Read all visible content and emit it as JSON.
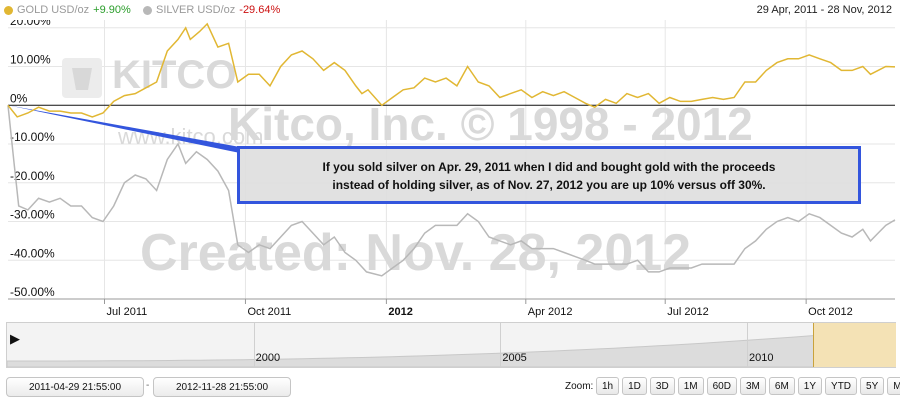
{
  "legend": {
    "gold": {
      "label": "GOLD USD/oz",
      "change": "+9.90%",
      "color": "#e1b733",
      "change_color": "#2a9d2a"
    },
    "silver": {
      "label": "SILVER USD/oz",
      "change": "-29.64%",
      "color": "#b8b8b8",
      "change_color": "#cc1111"
    },
    "date_range": "29 Apr, 2011 - 28 Nov, 2012"
  },
  "watermark": {
    "logo": "KITCO",
    "site": "www.kitco.com",
    "copyright": "Kitco, Inc. © 1998 - 2012",
    "created": "Created: Nov. 28, 2012"
  },
  "annotation": {
    "line1": "If you sold silver on Apr. 29, 2011 when I did and bought gold with the proceeds",
    "line2": "instead of holding silver, as of Nov. 27, 2012 you are up 10% versus off 30%."
  },
  "chart_data": {
    "type": "line",
    "title": "",
    "y_axis": {
      "ticks": [
        "20.00%",
        "10.00%",
        "0%",
        "-10.00%",
        "-20.00%",
        "-30.00%",
        "-40.00%",
        "-50.00%"
      ],
      "ylim": [
        -50,
        22
      ],
      "unit": "%"
    },
    "x_axis": {
      "ticks": [
        {
          "label": "Jul 2011",
          "date": "2011-07-01",
          "bold": false
        },
        {
          "label": "Oct 2011",
          "date": "2011-10-01",
          "bold": false
        },
        {
          "label": "2012",
          "date": "2012-01-01",
          "bold": true
        },
        {
          "label": "Apr 2012",
          "date": "2012-04-01",
          "bold": false
        },
        {
          "label": "Jul 2012",
          "date": "2012-07-01",
          "bold": false
        },
        {
          "label": "Oct 2012",
          "date": "2012-10-01",
          "bold": false
        }
      ],
      "xlim": [
        "2011-04-29",
        "2012-11-28"
      ]
    },
    "series": [
      {
        "name": "GOLD USD/oz",
        "color": "#e1b733",
        "points": [
          [
            "2011-04-29",
            0
          ],
          [
            "2011-05-05",
            -3
          ],
          [
            "2011-05-12",
            -2
          ],
          [
            "2011-05-19",
            -0.5
          ],
          [
            "2011-05-26",
            -1.5
          ],
          [
            "2011-06-02",
            -1.5
          ],
          [
            "2011-06-09",
            -2
          ],
          [
            "2011-06-16",
            -2
          ],
          [
            "2011-06-23",
            -3
          ],
          [
            "2011-06-30",
            -2
          ],
          [
            "2011-07-07",
            1
          ],
          [
            "2011-07-14",
            2.5
          ],
          [
            "2011-07-21",
            3
          ],
          [
            "2011-07-28",
            4.5
          ],
          [
            "2011-08-04",
            6
          ],
          [
            "2011-08-11",
            14
          ],
          [
            "2011-08-18",
            17
          ],
          [
            "2011-08-23",
            20
          ],
          [
            "2011-08-26",
            17
          ],
          [
            "2011-09-01",
            19
          ],
          [
            "2011-09-06",
            21
          ],
          [
            "2011-09-13",
            15
          ],
          [
            "2011-09-20",
            16
          ],
          [
            "2011-09-26",
            6
          ],
          [
            "2011-10-03",
            8
          ],
          [
            "2011-10-10",
            8
          ],
          [
            "2011-10-17",
            5
          ],
          [
            "2011-10-24",
            10
          ],
          [
            "2011-10-31",
            13
          ],
          [
            "2011-11-07",
            14
          ],
          [
            "2011-11-14",
            12
          ],
          [
            "2011-11-21",
            9
          ],
          [
            "2011-11-28",
            11
          ],
          [
            "2011-12-05",
            9
          ],
          [
            "2011-12-12",
            5
          ],
          [
            "2011-12-16",
            3
          ],
          [
            "2011-12-20",
            4
          ],
          [
            "2011-12-29",
            0
          ],
          [
            "2012-01-05",
            2
          ],
          [
            "2012-01-12",
            4
          ],
          [
            "2012-01-19",
            4.5
          ],
          [
            "2012-01-26",
            7
          ],
          [
            "2012-02-02",
            6
          ],
          [
            "2012-02-09",
            7
          ],
          [
            "2012-02-16",
            5
          ],
          [
            "2012-02-23",
            10
          ],
          [
            "2012-03-01",
            6
          ],
          [
            "2012-03-08",
            5
          ],
          [
            "2012-03-15",
            2
          ],
          [
            "2012-03-22",
            3
          ],
          [
            "2012-03-29",
            4
          ],
          [
            "2012-04-05",
            2
          ],
          [
            "2012-04-12",
            3.5
          ],
          [
            "2012-04-19",
            2.5
          ],
          [
            "2012-04-26",
            3.5
          ],
          [
            "2012-05-03",
            2
          ],
          [
            "2012-05-10",
            0.5
          ],
          [
            "2012-05-16",
            -0.5
          ],
          [
            "2012-05-23",
            1.5
          ],
          [
            "2012-05-30",
            0.5
          ],
          [
            "2012-06-06",
            3
          ],
          [
            "2012-06-13",
            2
          ],
          [
            "2012-06-20",
            3
          ],
          [
            "2012-06-27",
            0.5
          ],
          [
            "2012-07-04",
            2
          ],
          [
            "2012-07-11",
            1
          ],
          [
            "2012-07-18",
            1
          ],
          [
            "2012-07-25",
            1.5
          ],
          [
            "2012-08-01",
            2
          ],
          [
            "2012-08-08",
            1.5
          ],
          [
            "2012-08-15",
            2
          ],
          [
            "2012-08-22",
            6
          ],
          [
            "2012-08-29",
            6
          ],
          [
            "2012-09-05",
            9
          ],
          [
            "2012-09-12",
            11
          ],
          [
            "2012-09-19",
            12
          ],
          [
            "2012-09-26",
            12
          ],
          [
            "2012-10-03",
            13
          ],
          [
            "2012-10-10",
            12
          ],
          [
            "2012-10-17",
            11
          ],
          [
            "2012-10-24",
            9
          ],
          [
            "2012-10-31",
            9
          ],
          [
            "2012-11-07",
            10
          ],
          [
            "2012-11-12",
            8
          ],
          [
            "2012-11-17",
            9
          ],
          [
            "2012-11-22",
            10
          ],
          [
            "2012-11-28",
            9.9
          ]
        ]
      },
      {
        "name": "SILVER USD/oz",
        "color": "#b8b8b8",
        "points": [
          [
            "2011-04-29",
            0
          ],
          [
            "2011-05-03",
            -15
          ],
          [
            "2011-05-06",
            -26
          ],
          [
            "2011-05-12",
            -27
          ],
          [
            "2011-05-19",
            -24
          ],
          [
            "2011-05-26",
            -25
          ],
          [
            "2011-06-02",
            -24
          ],
          [
            "2011-06-09",
            -26
          ],
          [
            "2011-06-16",
            -26
          ],
          [
            "2011-06-23",
            -29
          ],
          [
            "2011-06-30",
            -30
          ],
          [
            "2011-07-07",
            -26
          ],
          [
            "2011-07-14",
            -20
          ],
          [
            "2011-07-21",
            -18
          ],
          [
            "2011-07-28",
            -19
          ],
          [
            "2011-08-04",
            -22
          ],
          [
            "2011-08-11",
            -14
          ],
          [
            "2011-08-18",
            -10
          ],
          [
            "2011-08-23",
            -15
          ],
          [
            "2011-08-30",
            -12
          ],
          [
            "2011-09-06",
            -14
          ],
          [
            "2011-09-13",
            -17
          ],
          [
            "2011-09-20",
            -22
          ],
          [
            "2011-09-26",
            -36
          ],
          [
            "2011-10-03",
            -38
          ],
          [
            "2011-10-10",
            -36
          ],
          [
            "2011-10-17",
            -37
          ],
          [
            "2011-10-24",
            -34
          ],
          [
            "2011-10-31",
            -31
          ],
          [
            "2011-11-07",
            -30
          ],
          [
            "2011-11-14",
            -33
          ],
          [
            "2011-11-21",
            -36
          ],
          [
            "2011-11-28",
            -34
          ],
          [
            "2011-12-05",
            -38
          ],
          [
            "2011-12-12",
            -40
          ],
          [
            "2011-12-19",
            -43
          ],
          [
            "2011-12-29",
            -44
          ],
          [
            "2012-01-05",
            -42
          ],
          [
            "2012-01-12",
            -40
          ],
          [
            "2012-01-19",
            -37
          ],
          [
            "2012-01-26",
            -33
          ],
          [
            "2012-02-02",
            -31
          ],
          [
            "2012-02-09",
            -31
          ],
          [
            "2012-02-16",
            -31
          ],
          [
            "2012-02-23",
            -28
          ],
          [
            "2012-03-01",
            -30
          ],
          [
            "2012-03-08",
            -34
          ],
          [
            "2012-03-15",
            -35
          ],
          [
            "2012-03-22",
            -36
          ],
          [
            "2012-03-29",
            -35
          ],
          [
            "2012-04-05",
            -37
          ],
          [
            "2012-04-12",
            -37
          ],
          [
            "2012-04-19",
            -37
          ],
          [
            "2012-04-26",
            -38
          ],
          [
            "2012-05-03",
            -39
          ],
          [
            "2012-05-10",
            -40
          ],
          [
            "2012-05-16",
            -41
          ],
          [
            "2012-05-23",
            -41
          ],
          [
            "2012-05-30",
            -41
          ],
          [
            "2012-06-06",
            -41
          ],
          [
            "2012-06-13",
            -40
          ],
          [
            "2012-06-20",
            -43
          ],
          [
            "2012-06-27",
            -43
          ],
          [
            "2012-07-04",
            -42
          ],
          [
            "2012-07-11",
            -42
          ],
          [
            "2012-07-18",
            -42
          ],
          [
            "2012-07-25",
            -41
          ],
          [
            "2012-08-01",
            -41
          ],
          [
            "2012-08-08",
            -41
          ],
          [
            "2012-08-15",
            -41
          ],
          [
            "2012-08-22",
            -37
          ],
          [
            "2012-08-29",
            -35
          ],
          [
            "2012-09-05",
            -32
          ],
          [
            "2012-09-12",
            -30
          ],
          [
            "2012-09-19",
            -29
          ],
          [
            "2012-09-26",
            -30
          ],
          [
            "2012-10-03",
            -28
          ],
          [
            "2012-10-10",
            -29
          ],
          [
            "2012-10-17",
            -31
          ],
          [
            "2012-10-24",
            -33
          ],
          [
            "2012-10-31",
            -34
          ],
          [
            "2012-11-07",
            -32
          ],
          [
            "2012-11-12",
            -35
          ],
          [
            "2012-11-17",
            -33
          ],
          [
            "2012-11-22",
            -31
          ],
          [
            "2012-11-28",
            -29.6
          ]
        ]
      }
    ],
    "grid": true,
    "legend_position": "top-left"
  },
  "navigator": {
    "year_labels": [
      {
        "label": "2000",
        "year": 2000
      },
      {
        "label": "2005",
        "year": 2005
      },
      {
        "label": "2010",
        "year": 2010
      }
    ],
    "play_glyph": "▶"
  },
  "controls": {
    "from_date": "2011-04-29 21:55:00",
    "separator": "-",
    "to_date": "2012-11-28 21:55:00",
    "zoom_label": "Zoom:",
    "zoom_buttons": [
      "1h",
      "1D",
      "3D",
      "1M",
      "60D",
      "3M",
      "6M",
      "1Y",
      "YTD",
      "5Y",
      "MAX"
    ]
  }
}
